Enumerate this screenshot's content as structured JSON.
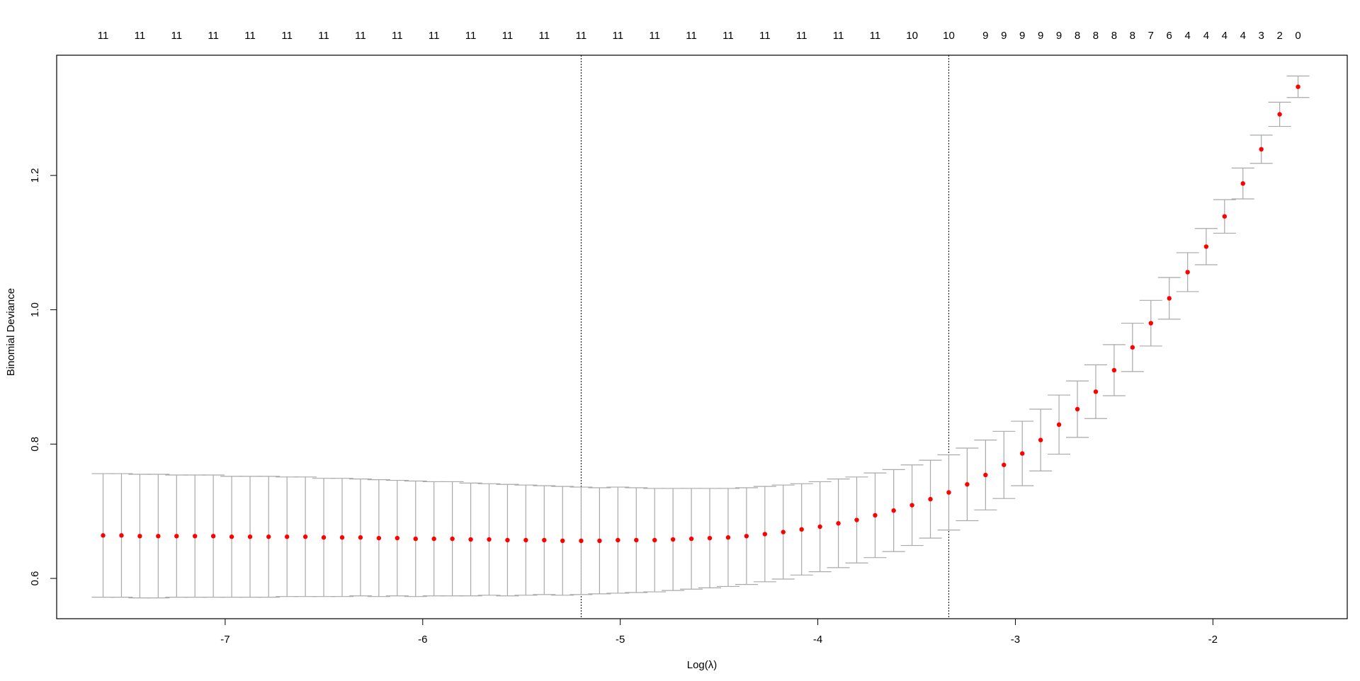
{
  "chart_data": {
    "type": "errorbar",
    "x_label": "Log(λ)",
    "y_label": "Binomial Deviance",
    "x": [
      -7.618,
      -7.525,
      -7.432,
      -7.339,
      -7.246,
      -7.153,
      -7.06,
      -6.967,
      -6.874,
      -6.78,
      -6.687,
      -6.594,
      -6.501,
      -6.408,
      -6.315,
      -6.222,
      -6.129,
      -6.036,
      -5.943,
      -5.85,
      -5.757,
      -5.664,
      -5.571,
      -5.478,
      -5.385,
      -5.292,
      -5.198,
      -5.105,
      -5.012,
      -4.919,
      -4.826,
      -4.733,
      -4.64,
      -4.547,
      -4.454,
      -4.361,
      -4.268,
      -4.175,
      -4.082,
      -3.989,
      -3.896,
      -3.803,
      -3.71,
      -3.616,
      -3.523,
      -3.43,
      -3.337,
      -3.244,
      -3.151,
      -3.058,
      -2.965,
      -2.872,
      -2.779,
      -2.686,
      -2.593,
      -2.5,
      -2.407,
      -2.314,
      -2.221,
      -2.128,
      -2.034,
      -1.941,
      -1.848,
      -1.755,
      -1.662,
      -1.569
    ],
    "series": [
      {
        "color": "#ff0000",
        "error_color": "#a9a9a9",
        "values": [
          0.664,
          0.664,
          0.663,
          0.663,
          0.663,
          0.663,
          0.663,
          0.662,
          0.662,
          0.662,
          0.662,
          0.662,
          0.661,
          0.661,
          0.661,
          0.66,
          0.66,
          0.659,
          0.659,
          0.659,
          0.658,
          0.658,
          0.657,
          0.657,
          0.657,
          0.656,
          0.656,
          0.656,
          0.657,
          0.657,
          0.657,
          0.658,
          0.659,
          0.66,
          0.661,
          0.663,
          0.666,
          0.669,
          0.673,
          0.677,
          0.682,
          0.687,
          0.694,
          0.701,
          0.709,
          0.718,
          0.728,
          0.74,
          0.754,
          0.769,
          0.786,
          0.806,
          0.829,
          0.852,
          0.878,
          0.91,
          0.944,
          0.98,
          1.017,
          1.056,
          1.094,
          1.139,
          1.188,
          1.239,
          1.291,
          1.332
        ],
        "errors": [
          0.092,
          0.092,
          0.092,
          0.092,
          0.091,
          0.091,
          0.091,
          0.09,
          0.09,
          0.09,
          0.089,
          0.089,
          0.088,
          0.088,
          0.087,
          0.087,
          0.086,
          0.086,
          0.085,
          0.085,
          0.084,
          0.083,
          0.083,
          0.082,
          0.081,
          0.081,
          0.08,
          0.079,
          0.079,
          0.078,
          0.077,
          0.076,
          0.075,
          0.074,
          0.073,
          0.072,
          0.071,
          0.07,
          0.068,
          0.067,
          0.066,
          0.064,
          0.063,
          0.061,
          0.06,
          0.058,
          0.056,
          0.054,
          0.052,
          0.05,
          0.048,
          0.046,
          0.044,
          0.042,
          0.04,
          0.038,
          0.036,
          0.034,
          0.031,
          0.029,
          0.027,
          0.025,
          0.023,
          0.021,
          0.018,
          0.016
        ]
      }
    ],
    "xlim": [
      -7.853,
      -1.32
    ],
    "ylim": [
      0.54,
      1.379
    ],
    "xticks": [
      -7,
      -6,
      -5,
      -4,
      -3,
      -2
    ],
    "yticks": [
      0.6,
      0.8,
      {
        "value": 1,
        "label": "1.0"
      },
      1.2
    ],
    "x2ticks": [
      {
        "value": -7.618,
        "label": "11"
      },
      {
        "value": -7.432,
        "label": "11"
      },
      {
        "value": -7.246,
        "label": "11"
      },
      {
        "value": -7.06,
        "label": "11"
      },
      {
        "value": -6.874,
        "label": "11"
      },
      {
        "value": -6.687,
        "label": "11"
      },
      {
        "value": -6.501,
        "label": "11"
      },
      {
        "value": -6.315,
        "label": "11"
      },
      {
        "value": -6.129,
        "label": "11"
      },
      {
        "value": -5.943,
        "label": "11"
      },
      {
        "value": -5.757,
        "label": "11"
      },
      {
        "value": -5.571,
        "label": "11"
      },
      {
        "value": -5.385,
        "label": "11"
      },
      {
        "value": -5.198,
        "label": "11"
      },
      {
        "value": -5.012,
        "label": "11"
      },
      {
        "value": -4.826,
        "label": "11"
      },
      {
        "value": -4.64,
        "label": "11"
      },
      {
        "value": -4.454,
        "label": "11"
      },
      {
        "value": -4.268,
        "label": "11"
      },
      {
        "value": -4.082,
        "label": "11"
      },
      {
        "value": -3.896,
        "label": "11"
      },
      {
        "value": -3.71,
        "label": "11"
      },
      {
        "value": -3.523,
        "label": "10"
      },
      {
        "value": -3.337,
        "label": "10"
      },
      {
        "value": -3.151,
        "label": "9"
      },
      {
        "value": -3.058,
        "label": "9"
      },
      {
        "value": -2.965,
        "label": "9"
      },
      {
        "value": -2.872,
        "label": "9"
      },
      {
        "value": -2.779,
        "label": "9"
      },
      {
        "value": -2.686,
        "label": "8"
      },
      {
        "value": -2.593,
        "label": "8"
      },
      {
        "value": -2.5,
        "label": "8"
      },
      {
        "value": -2.407,
        "label": "8"
      },
      {
        "value": -2.314,
        "label": "7"
      },
      {
        "value": -2.221,
        "label": "6"
      },
      {
        "value": -2.128,
        "label": "4"
      },
      {
        "value": -2.034,
        "label": "4"
      },
      {
        "value": -1.941,
        "label": "4"
      },
      {
        "value": -1.848,
        "label": "4"
      },
      {
        "value": -1.755,
        "label": "3"
      },
      {
        "value": -1.662,
        "label": "2"
      },
      {
        "value": -1.569,
        "label": "0"
      }
    ],
    "vlines": [
      -5.198,
      -3.337
    ]
  }
}
